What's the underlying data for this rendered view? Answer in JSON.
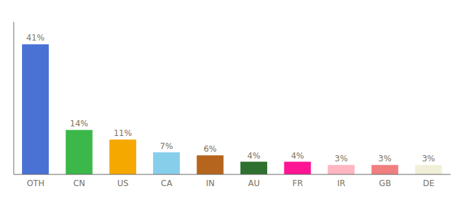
{
  "chart_data": {
    "type": "bar",
    "categories": [
      "OTH",
      "CN",
      "US",
      "CA",
      "IN",
      "AU",
      "FR",
      "IR",
      "GB",
      "DE"
    ],
    "values": [
      41,
      14,
      11,
      7,
      6,
      4,
      4,
      3,
      3,
      3
    ],
    "value_labels": [
      "41%",
      "14%",
      "11%",
      "7%",
      "6%",
      "4%",
      "4%",
      "3%",
      "3%",
      "3%"
    ],
    "colors": [
      "#4a72d4",
      "#3cb84a",
      "#f5a800",
      "#87ceeb",
      "#b5651d",
      "#2e7030",
      "#ff1493",
      "#ffb6c1",
      "#f08080",
      "#f0f0d8"
    ],
    "ylim": [
      0,
      48
    ],
    "yticks": [],
    "grid": false,
    "data_labels": true,
    "tick_labels": "x"
  }
}
